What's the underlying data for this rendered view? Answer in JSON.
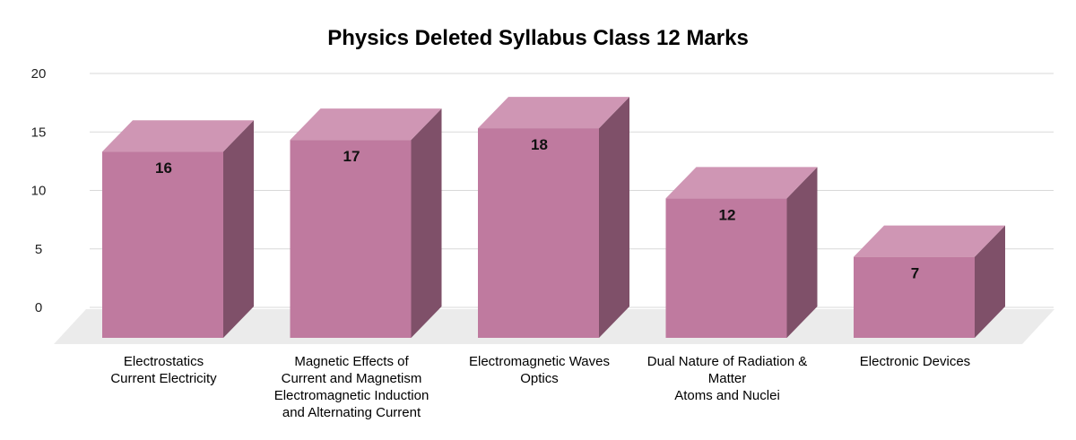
{
  "chart_data": {
    "type": "bar",
    "title": "Physics Deleted Syllabus Class 12 Marks",
    "xlabel": "",
    "ylabel": "",
    "ylim": [
      0,
      20
    ],
    "yticks": [
      "0",
      "5",
      "10",
      "15",
      "20"
    ],
    "grid": true,
    "legend": "none",
    "style": "3d",
    "categories": [
      [
        "Electrostatics",
        "Current Electricity"
      ],
      [
        "Magnetic Effects of",
        "Current and Magnetism",
        "Electromagnetic Induction",
        "and Alternating Current"
      ],
      [
        "Electromagnetic Waves",
        "Optics"
      ],
      [
        "Dual Nature of Radiation &",
        "Matter",
        "Atoms and Nuclei"
      ],
      [
        "Electronic Devices"
      ]
    ],
    "values": [
      16,
      17,
      18,
      12,
      7
    ],
    "data_labels": [
      "16",
      "17",
      "18",
      "12",
      "7"
    ],
    "colors": {
      "front": "#bf7a9f",
      "top": "#cf96b4",
      "side": "#7f5069",
      "grid": "#d9d9d9",
      "floor": "#ebebeb"
    }
  }
}
